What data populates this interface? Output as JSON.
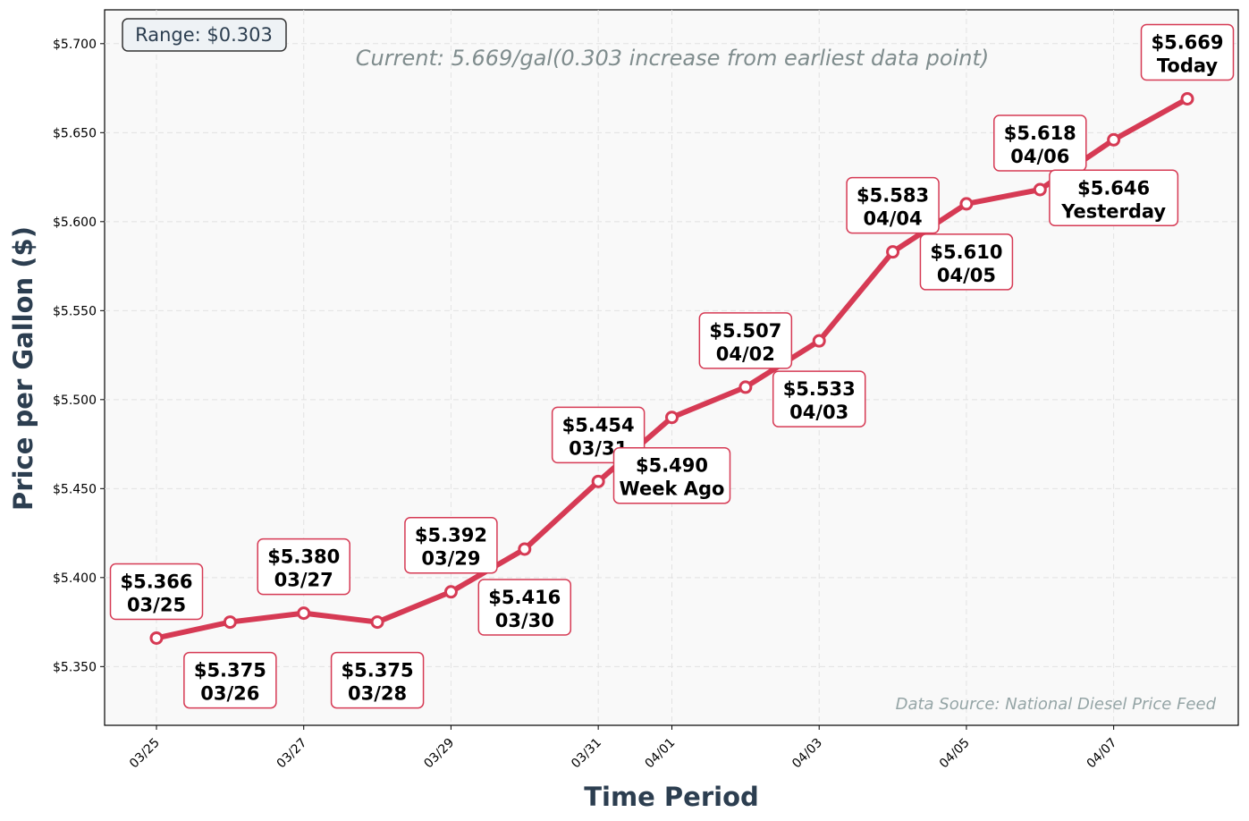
{
  "chart_data": {
    "type": "line",
    "title": "",
    "xlabel": "Time Period",
    "ylabel": "Price per Gallon ($)",
    "x": [
      "03/25",
      "03/26",
      "03/27",
      "03/28",
      "03/29",
      "03/30",
      "03/31",
      "04/01",
      "04/02",
      "04/03",
      "04/04",
      "04/05",
      "04/06",
      "04/07",
      "04/08"
    ],
    "values": [
      5.366,
      5.375,
      5.38,
      5.375,
      5.392,
      5.416,
      5.454,
      5.49,
      5.507,
      5.533,
      5.583,
      5.61,
      5.618,
      5.646,
      5.669
    ],
    "point_labels": [
      {
        "price": "$5.366",
        "date": "03/25",
        "position": "above"
      },
      {
        "price": "$5.375",
        "date": "03/26",
        "position": "below"
      },
      {
        "price": "$5.380",
        "date": "03/27",
        "position": "above"
      },
      {
        "price": "$5.375",
        "date": "03/28",
        "position": "below"
      },
      {
        "price": "$5.392",
        "date": "03/29",
        "position": "above"
      },
      {
        "price": "$5.416",
        "date": "03/30",
        "position": "below"
      },
      {
        "price": "$5.454",
        "date": "03/31",
        "position": "above"
      },
      {
        "price": "$5.490",
        "date": "Week Ago",
        "position": "below"
      },
      {
        "price": "$5.507",
        "date": "04/02",
        "position": "above"
      },
      {
        "price": "$5.533",
        "date": "04/03",
        "position": "below"
      },
      {
        "price": "$5.583",
        "date": "04/04",
        "position": "above"
      },
      {
        "price": "$5.610",
        "date": "04/05",
        "position": "below"
      },
      {
        "price": "$5.618",
        "date": "04/06",
        "position": "above"
      },
      {
        "price": "$5.646",
        "date": "Yesterday",
        "position": "below"
      },
      {
        "price": "$5.669",
        "date": "Today",
        "position": "above"
      }
    ],
    "x_ticks": [
      "03/25",
      "03/27",
      "03/29",
      "03/31",
      "04/01",
      "04/03",
      "04/05",
      "04/07"
    ],
    "y_ticks": [
      5.35,
      5.4,
      5.45,
      5.5,
      5.55,
      5.6,
      5.65,
      5.7
    ],
    "y_tick_labels": [
      "$5.350",
      "$5.400",
      "$5.450",
      "$5.500",
      "$5.550",
      "$5.600",
      "$5.650",
      "$5.700"
    ],
    "ylim": [
      5.317,
      5.719
    ],
    "grid": true,
    "annotations": {
      "range": "Range: $0.303",
      "current": "Current: 5.669/gal(0.303 increase from earliest data point)",
      "source": "Data Source: National Diesel Price Feed"
    },
    "colors": {
      "line": "#d63a54",
      "background": "#f9f9f9",
      "axis_label": "#2c3e50",
      "current_text": "#7f8c8d",
      "source_text": "#95a5a6"
    }
  }
}
